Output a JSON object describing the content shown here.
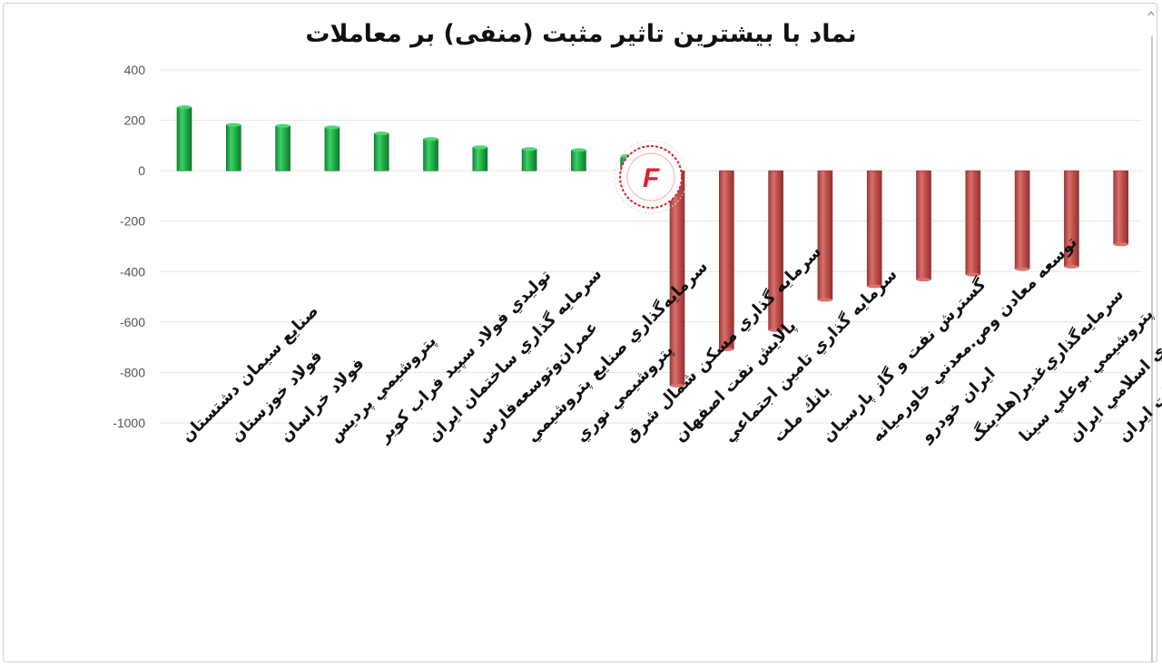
{
  "chart_data": {
    "type": "bar",
    "title": "نماد با بیشترین تاثیر مثبت (منفی) بر معاملات",
    "xlabel": "",
    "ylabel": "",
    "ylim": [
      -1000,
      400
    ],
    "yticks": [
      400,
      200,
      0,
      -200,
      -400,
      -600,
      -800,
      -1000
    ],
    "grid": true,
    "categories": [
      "صنايع سيمان دشتستان",
      "فولاد خوزستان",
      "فولاد خراسان",
      "پتروشيمي پرديس",
      "توليدي فولاد سپيد فراب كوير",
      "سرمايه گذاري ساختمان ايران",
      "عمران‌وتوسعه‌فارس",
      "سرمايه‌گذاري صنايع پتروشيمي",
      "پتروشيمي نوري",
      "سرمايه گذاري مسكن شمال شرق",
      "پالايش نفت اصفهان",
      "سرمايه گذاري تامين اجتماعي",
      "بانك ملت",
      "گسترش نفت و گاز پارسيان",
      "توسعه معادن وص.معدني خاورميانه",
      "ايران خودرو",
      "سرمايه‌گذاري‌غدير(هلدينگ",
      "پتروشيمي بوعلي سينا",
      "كشتيراني جمهوري اسلامي ايران",
      "مخابرات ايران"
    ],
    "values": [
      252,
      182,
      178,
      172,
      148,
      126,
      93,
      86,
      82,
      58,
      -852,
      -708,
      -632,
      -512,
      -458,
      -432,
      -412,
      -390,
      -380,
      -292
    ],
    "colors": {
      "positive": "#22b14c",
      "negative": "#c0504d"
    }
  },
  "logo": {
    "letter": "F",
    "color": "#e0202a"
  }
}
